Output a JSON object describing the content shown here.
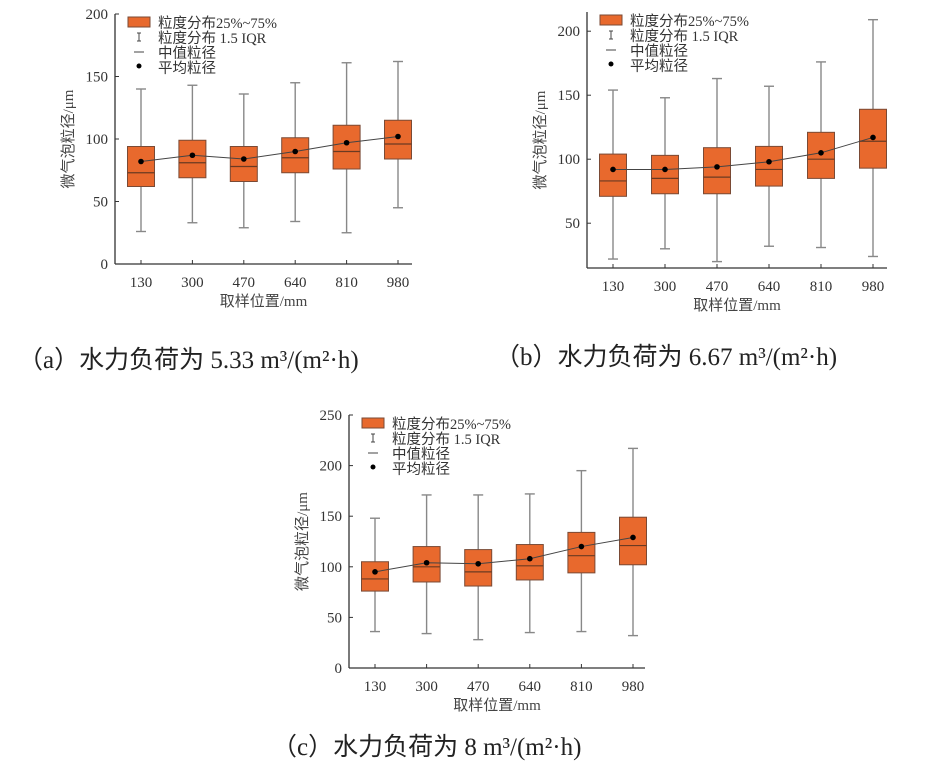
{
  "colors": {
    "box_fill": "#E8692D",
    "box_edge": "#7a4a35",
    "whisker": "#888888",
    "mean": "#000000",
    "axis": "#333333"
  },
  "legend": {
    "box": "粒度分布25%~75%",
    "whisker": "粒度分布 1.5 IQR",
    "median": "中值粒径",
    "mean": "平均粒径"
  },
  "chart_data": [
    {
      "type": "box",
      "caption": "（a）水力负荷为 5.33 m³/(m²·h)",
      "xlabel": "取样位置/mm",
      "ylabel": "微气泡粒径/μm",
      "categories": [
        "130",
        "300",
        "470",
        "640",
        "810",
        "980"
      ],
      "ylim": [
        0,
        200
      ],
      "yticks": [
        0,
        50,
        100,
        150,
        200
      ],
      "whisker_low": [
        26,
        33,
        29,
        34,
        25,
        45
      ],
      "q1": [
        62,
        69,
        66,
        73,
        76,
        84
      ],
      "median": [
        73,
        81,
        78,
        85,
        90,
        96
      ],
      "q3": [
        94,
        99,
        94,
        101,
        111,
        115
      ],
      "whisker_high": [
        140,
        143,
        136,
        145,
        161,
        162
      ],
      "mean": [
        82,
        87,
        84,
        90,
        97,
        102
      ]
    },
    {
      "type": "box",
      "caption": "（b）水力负荷为 6.67 m³/(m²·h)",
      "xlabel": "取样位置/mm",
      "ylabel": "微气泡粒径/μm",
      "categories": [
        "130",
        "300",
        "470",
        "640",
        "810",
        "980"
      ],
      "ylim": [
        15,
        215
      ],
      "yticks": [
        50,
        100,
        150,
        200
      ],
      "whisker_low": [
        22,
        30,
        20,
        32,
        31,
        24
      ],
      "q1": [
        71,
        73,
        73,
        79,
        85,
        93
      ],
      "median": [
        83,
        85,
        86,
        92,
        100,
        114
      ],
      "q3": [
        104,
        103,
        109,
        110,
        121,
        139
      ],
      "whisker_high": [
        154,
        148,
        163,
        157,
        176,
        209
      ],
      "mean": [
        92,
        92,
        94,
        98,
        105,
        117
      ]
    },
    {
      "type": "box",
      "caption": "（c）水力负荷为 8 m³/(m²·h)",
      "xlabel": "取样位置/mm",
      "ylabel": "微气泡粒径/μm",
      "categories": [
        "130",
        "300",
        "470",
        "640",
        "810",
        "980"
      ],
      "ylim": [
        0,
        250
      ],
      "yticks": [
        0,
        50,
        100,
        150,
        200,
        250
      ],
      "whisker_low": [
        36,
        34,
        28,
        35,
        36,
        32
      ],
      "q1": [
        76,
        85,
        81,
        87,
        94,
        102
      ],
      "median": [
        88,
        100,
        95,
        101,
        111,
        121
      ],
      "q3": [
        105,
        120,
        117,
        122,
        134,
        149
      ],
      "whisker_high": [
        148,
        171,
        171,
        172,
        195,
        217
      ],
      "mean": [
        95,
        104,
        103,
        108,
        120,
        129
      ]
    }
  ]
}
